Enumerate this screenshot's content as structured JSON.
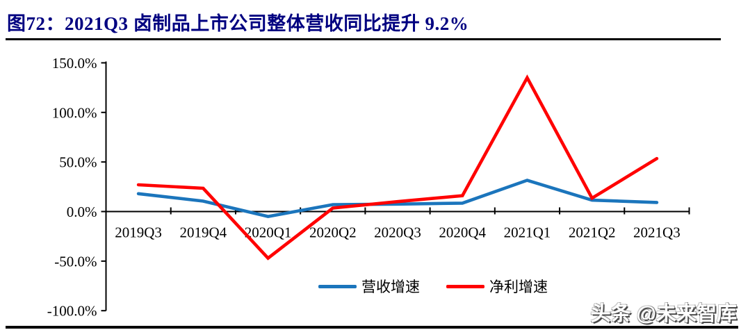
{
  "figure": {
    "title": "图72：2021Q3 卤制品上市公司整体营收同比提升 9.2%",
    "title_color": "#000080"
  },
  "watermark": "头条 @未来智库",
  "chart_data": {
    "type": "line",
    "title": "2021Q3 卤制品上市公司整体营收同比提升 9.2%",
    "categories": [
      "2019Q3",
      "2019Q4",
      "2020Q1",
      "2020Q2",
      "2020Q3",
      "2020Q4",
      "2021Q1",
      "2021Q2",
      "2021Q3"
    ],
    "series": [
      {
        "name": "营收增速",
        "color": "#1B75BC",
        "values": [
          18.0,
          10.5,
          -5.0,
          7.0,
          7.5,
          8.5,
          31.5,
          11.5,
          9.2
        ]
      },
      {
        "name": "净利增速",
        "color": "#FF0000",
        "values": [
          27.0,
          23.5,
          -47.0,
          3.5,
          10.0,
          16.0,
          135.0,
          13.5,
          53.5
        ]
      }
    ],
    "unit": "%",
    "ylim": [
      -100,
      150
    ],
    "yticks": [
      150,
      100,
      50,
      0,
      -50,
      -100
    ],
    "ytick_labels": [
      "150.0%",
      "100.0%",
      "50.0%",
      "0.0%",
      "-50.0%",
      "-100.0%"
    ],
    "grid": false,
    "legend_position": "bottom-center",
    "axis_color": "#000000"
  }
}
